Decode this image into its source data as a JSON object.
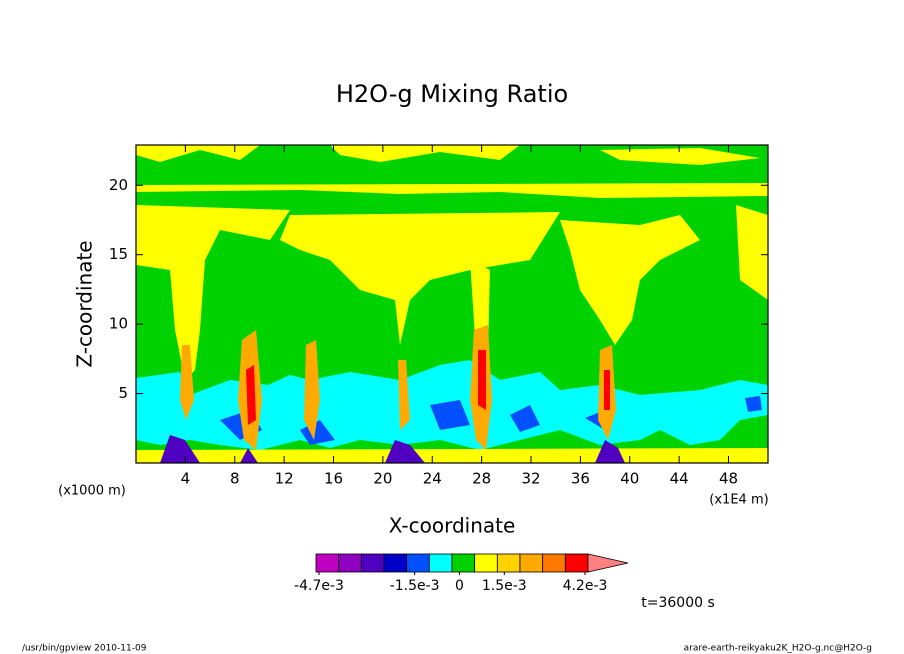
{
  "chart_data": {
    "type": "contour",
    "title": "H2O-g Mixing Ratio",
    "x_label": "X-coordinate",
    "y_label": "Z-coordinate",
    "x_unit": "(x1E4 m)",
    "y_unit": "(x1000 m)",
    "time_label": "t=36000 s",
    "footer_left": "/usr/bin/gpview  2010-11-09",
    "footer_right": "arare-earth-reikyaku2K_H2O-g.nc@H2O-g",
    "xlim": [
      0,
      51.2
    ],
    "ylim": [
      0,
      22.9
    ],
    "xticks": [
      4,
      8,
      12,
      16,
      20,
      24,
      28,
      32,
      36,
      40,
      44,
      48
    ],
    "yticks": [
      5,
      10,
      15,
      20
    ],
    "colorbar": {
      "lim": [
        -0.0048,
        0.0043
      ],
      "colors": [
        "#c000c0",
        "#9000c0",
        "#5000c0",
        "#0000c8",
        "#0050ff",
        "#00ffff",
        "#00d200",
        "#ffff00",
        "#ffd200",
        "#ffaa00",
        "#ff7800",
        "#ff0000",
        "#ff8080"
      ],
      "ticks": [
        {
          "value": -0.0047,
          "label": "-4.7e-3"
        },
        {
          "value": -0.0015,
          "label": "-1.5e-3"
        },
        {
          "value": 0,
          "label": "0"
        },
        {
          "value": 0.0015,
          "label": "1.5e-3"
        },
        {
          "value": 0.0042,
          "label": "4.2e-3"
        }
      ]
    }
  }
}
